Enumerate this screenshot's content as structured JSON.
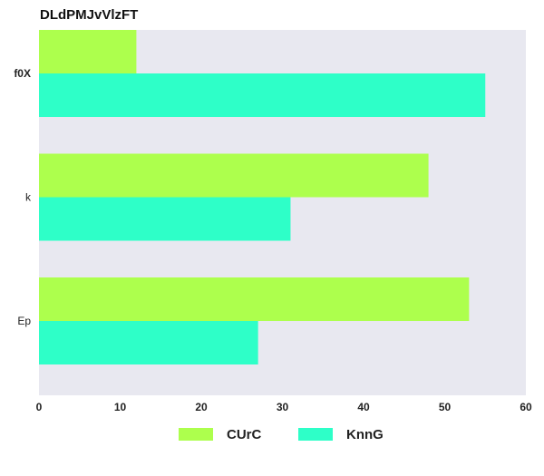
{
  "chart_data": {
    "type": "bar",
    "orientation": "horizontal",
    "title": "DLdPMJvVlzFT",
    "categories": [
      "f0X",
      "k",
      "Ep"
    ],
    "series": [
      {
        "name": "CUrC",
        "values": [
          12,
          48,
          53
        ],
        "color": "#adff4d"
      },
      {
        "name": "KnnG",
        "values": [
          55,
          31,
          27
        ],
        "color": "#2effc8"
      }
    ],
    "xlim": [
      0,
      60
    ],
    "xticks": [
      0,
      10,
      20,
      30,
      40,
      50,
      60
    ],
    "grid": false,
    "legend_position": "bottom",
    "background": "#e8e8f0"
  }
}
